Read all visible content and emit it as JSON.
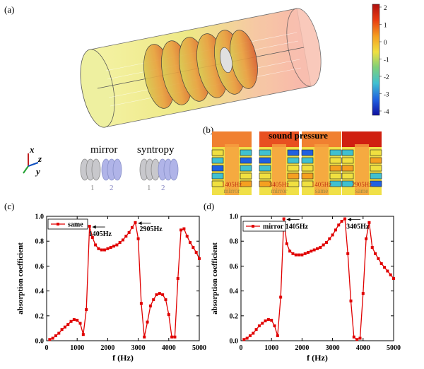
{
  "panels": {
    "a": "(a)",
    "b": "(b)",
    "c": "(c)",
    "d": "(d)"
  },
  "colorbar": {
    "ticks": [
      "2",
      "1",
      "0",
      "-1",
      "-2",
      "-3",
      "-4"
    ],
    "colors": [
      "#b01010",
      "#e83a10",
      "#f5a020",
      "#f0e040",
      "#7ed07a",
      "#40c0d0",
      "#2060e0",
      "#1010a0"
    ]
  },
  "axes_icon": {
    "x": "x",
    "z": "z",
    "y": "y"
  },
  "legend_icons": {
    "mirror": {
      "label": "mirror",
      "nums": [
        "1",
        "2"
      ]
    },
    "syntropy": {
      "label": "syntropy",
      "nums": [
        "1",
        "2"
      ]
    }
  },
  "pressure_panel": {
    "title": "sound pressure",
    "cells": [
      {
        "freq": "1405Hz",
        "mode": "mirror"
      },
      {
        "freq": "3405Hz",
        "mode": "mirror"
      },
      {
        "freq": "1405Hz",
        "mode": "same"
      },
      {
        "freq": "2905Hz",
        "mode": "same"
      }
    ]
  },
  "chart_data": [
    {
      "type": "line",
      "panel": "(c)",
      "xlabel": "f (Hz)",
      "ylabel": "absorption coefficient",
      "xlim": [
        0,
        5000
      ],
      "ylim": [
        0,
        1.0
      ],
      "xticks": [
        "0",
        "1000",
        "2000",
        "3000",
        "4000",
        "5000"
      ],
      "yticks": [
        "0.0",
        "0.2",
        "0.4",
        "0.6",
        "0.8",
        "1.0"
      ],
      "legend": "top-left",
      "color": "#e00000",
      "series": [
        {
          "name": "same",
          "x": [
            100,
            200,
            300,
            400,
            500,
            600,
            700,
            800,
            900,
            1000,
            1100,
            1200,
            1300,
            1405,
            1500,
            1600,
            1700,
            1800,
            1900,
            2000,
            2100,
            2200,
            2300,
            2400,
            2500,
            2600,
            2700,
            2800,
            2905,
            3000,
            3100,
            3200,
            3300,
            3400,
            3500,
            3600,
            3700,
            3800,
            3900,
            4000,
            4100,
            4200,
            4300,
            4400,
            4500,
            4600,
            4700,
            4800,
            4900,
            5000
          ],
          "values": [
            0.01,
            0.02,
            0.04,
            0.06,
            0.09,
            0.11,
            0.13,
            0.155,
            0.17,
            0.165,
            0.14,
            0.05,
            0.25,
            0.92,
            0.83,
            0.77,
            0.74,
            0.73,
            0.73,
            0.74,
            0.75,
            0.76,
            0.77,
            0.79,
            0.81,
            0.84,
            0.87,
            0.91,
            0.95,
            0.82,
            0.3,
            0.03,
            0.15,
            0.28,
            0.33,
            0.37,
            0.38,
            0.37,
            0.33,
            0.21,
            0.03,
            0.03,
            0.5,
            0.89,
            0.9,
            0.84,
            0.79,
            0.75,
            0.71,
            0.66
          ]
        }
      ],
      "annotations": [
        {
          "text": "1405Hz",
          "x": 1405,
          "y": 0.92
        },
        {
          "text": "2905Hz",
          "x": 2905,
          "y": 0.95
        }
      ]
    },
    {
      "type": "line",
      "panel": "(d)",
      "xlabel": "f (Hz)",
      "ylabel": "absorption coefficient",
      "xlim": [
        0,
        5000
      ],
      "ylim": [
        0,
        1.0
      ],
      "xticks": [
        "0",
        "1000",
        "2000",
        "3000",
        "4000",
        "5000"
      ],
      "yticks": [
        "0.0",
        "0.2",
        "0.4",
        "0.6",
        "0.8",
        "1.0"
      ],
      "legend": "top-left",
      "color": "#e00000",
      "series": [
        {
          "name": "mirror",
          "x": [
            100,
            200,
            300,
            400,
            500,
            600,
            700,
            800,
            900,
            1000,
            1100,
            1200,
            1300,
            1405,
            1500,
            1600,
            1700,
            1800,
            1900,
            2000,
            2100,
            2200,
            2300,
            2400,
            2500,
            2600,
            2700,
            2800,
            2900,
            3000,
            3100,
            3200,
            3300,
            3405,
            3500,
            3600,
            3700,
            3800,
            3900,
            4000,
            4100,
            4200,
            4300,
            4400,
            4500,
            4600,
            4700,
            4800,
            4900,
            5000
          ],
          "values": [
            0.01,
            0.02,
            0.04,
            0.06,
            0.09,
            0.12,
            0.14,
            0.16,
            0.17,
            0.165,
            0.12,
            0.04,
            0.35,
            0.98,
            0.78,
            0.72,
            0.7,
            0.69,
            0.69,
            0.69,
            0.7,
            0.71,
            0.72,
            0.73,
            0.74,
            0.75,
            0.77,
            0.79,
            0.82,
            0.85,
            0.89,
            0.93,
            0.96,
            0.98,
            0.7,
            0.32,
            0.03,
            0.01,
            0.02,
            0.38,
            0.82,
            0.95,
            0.75,
            0.7,
            0.66,
            0.62,
            0.59,
            0.56,
            0.53,
            0.5
          ]
        }
      ],
      "annotations": [
        {
          "text": "1405Hz",
          "x": 1405,
          "y": 0.98
        },
        {
          "text": "3405Hz",
          "x": 3405,
          "y": 0.98
        }
      ]
    }
  ]
}
